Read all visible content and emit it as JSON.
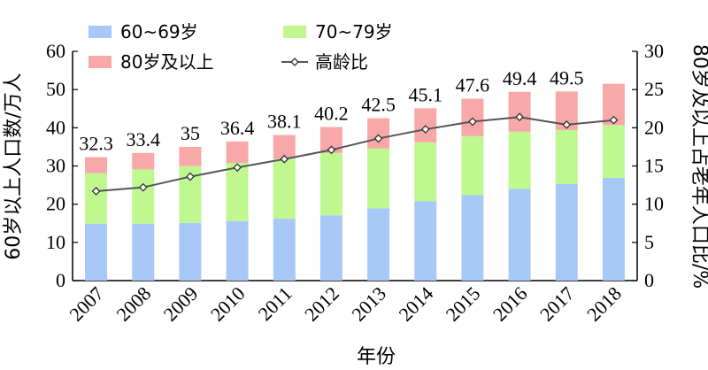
{
  "chart_data": {
    "type": "bar",
    "stacked": true,
    "categories": [
      "2007",
      "2008",
      "2009",
      "2010",
      "2011",
      "2012",
      "2013",
      "2014",
      "2015",
      "2016",
      "2017",
      "2018"
    ],
    "series": [
      {
        "name": "60~69岁",
        "color": "#a8c8f8",
        "values": [
          14.9,
          14.9,
          15.1,
          15.6,
          16.2,
          17.1,
          18.9,
          20.8,
          22.4,
          24.0,
          25.3,
          26.9
        ]
      },
      {
        "name": "70~79岁",
        "color": "#c0f890",
        "values": [
          13.2,
          14.2,
          14.9,
          15.2,
          15.7,
          16.3,
          15.7,
          15.4,
          15.4,
          15.0,
          14.1,
          13.8
        ]
      },
      {
        "name": "80岁及以上",
        "color": "#f8a8a8",
        "values": [
          4.2,
          4.3,
          5.0,
          5.6,
          6.2,
          6.8,
          7.9,
          8.9,
          9.8,
          10.4,
          10.1,
          10.8
        ]
      }
    ],
    "totals_labels": [
      "32.3",
      "33.4",
      "35",
      "36.4",
      "38.1",
      "40.2",
      "42.5",
      "45.1",
      "47.6",
      "49.4",
      "49.5",
      ""
    ],
    "line_series": {
      "name": "高龄比",
      "axis": "right",
      "values": [
        11.7,
        12.2,
        13.6,
        14.8,
        15.9,
        17.1,
        18.6,
        19.8,
        20.8,
        21.4,
        20.4,
        21.0
      ]
    },
    "xlabel": "年份",
    "ylabel_left": "60岁以上人口数/万人",
    "ylabel_right": "80岁及以上占老年人口比/%",
    "ylim_left": [
      0,
      60
    ],
    "yticks_left": [
      "0",
      "10",
      "20",
      "30",
      "40",
      "50",
      "60"
    ],
    "ylim_right": [
      0,
      30
    ],
    "yticks_right": [
      "0",
      "5",
      "10",
      "15",
      "20",
      "25",
      "30"
    ],
    "grid": false,
    "legend_placement": "top-left"
  }
}
